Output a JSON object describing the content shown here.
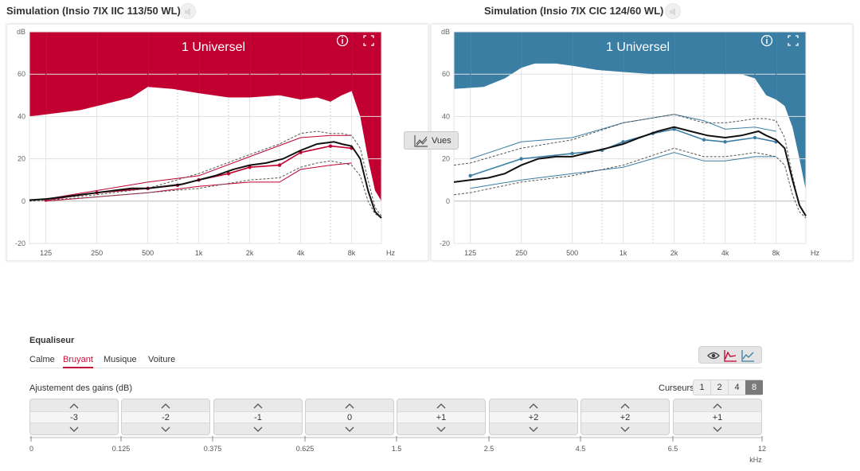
{
  "left_panel": {
    "title": "Simulation (Insio 7IX IIC 113/50 WL)",
    "overlay_label": "1 Universel",
    "info_icon": "info-icon",
    "expand_icon": "expand-icon",
    "color": "#c10031",
    "chart_data": {
      "type": "line",
      "ylabel": "dB",
      "xlabel": "Hz",
      "ylim": [
        -20,
        80
      ],
      "y_ticks": [
        "dB",
        "60",
        "40",
        "20",
        "0",
        "-20"
      ],
      "x_ticks": [
        "125",
        "250",
        "500",
        "1k",
        "2k",
        "4k",
        "8k"
      ],
      "grid": true,
      "series": [
        {
          "role": "target-black-solid",
          "x": [
            100,
            125,
            160,
            200,
            250,
            315,
            400,
            500,
            630,
            800,
            1000,
            1250,
            1600,
            2000,
            2500,
            3150,
            4000,
            5000,
            6300,
            7000,
            8000,
            9000,
            10000,
            11000,
            12000
          ],
          "values": [
            0.5,
            1,
            2,
            3,
            4,
            5,
            6,
            6,
            7,
            8,
            10,
            12,
            15,
            17,
            18,
            20,
            24,
            27,
            28,
            27,
            26,
            20,
            5,
            -5,
            -8
          ]
        },
        {
          "role": "measured-red-dots",
          "x": [
            125,
            250,
            500,
            750,
            1000,
            1500,
            2000,
            3000,
            4000,
            6000,
            8000
          ],
          "values": [
            0.5,
            4,
            6,
            7.5,
            10,
            13,
            16,
            17,
            23,
            26,
            25
          ]
        },
        {
          "role": "range-red-upper",
          "x": [
            125,
            250,
            500,
            1000,
            2000,
            4000,
            6000,
            8000
          ],
          "values": [
            1,
            5,
            9,
            12,
            21,
            30,
            31,
            31
          ]
        },
        {
          "role": "range-red-lower",
          "x": [
            125,
            250,
            500,
            1000,
            2000,
            3000,
            4000,
            6000,
            8000
          ],
          "values": [
            0,
            2,
            4,
            7,
            9,
            9,
            15,
            17,
            18
          ]
        },
        {
          "role": "dashed-upper",
          "x": [
            100,
            125,
            250,
            500,
            1000,
            2000,
            3000,
            4000,
            5000,
            6000,
            7000,
            8000,
            9000,
            10000,
            11000,
            12000
          ],
          "values": [
            0.5,
            1,
            3,
            6,
            13,
            22,
            27,
            32,
            33,
            32,
            32,
            31,
            25,
            10,
            -3,
            -7
          ]
        },
        {
          "role": "dashed-lower",
          "x": [
            100,
            125,
            250,
            500,
            1000,
            2000,
            3000,
            4000,
            5000,
            6000,
            7000,
            8000,
            9000,
            10000,
            11000,
            12000
          ],
          "values": [
            0,
            0.5,
            2,
            4,
            6,
            10,
            11,
            16,
            18,
            19,
            18,
            17,
            12,
            0,
            -6,
            -8
          ]
        },
        {
          "role": "ucl-fill-top",
          "x": [
            100,
            200,
            400,
            500,
            700,
            1000,
            1500,
            2000,
            3000,
            4000,
            5000,
            6000,
            7000,
            8000,
            9000,
            10000,
            11000,
            12000
          ],
          "values": [
            40,
            43,
            49,
            54,
            53,
            51,
            49,
            49,
            50,
            48,
            49,
            47,
            50,
            52,
            40,
            20,
            5,
            0
          ]
        }
      ]
    }
  },
  "right_panel": {
    "title": "Simulation (Insio 7IX CIC 124/60 WL)",
    "overlay_label": "1 Universel",
    "info_icon": "info-icon",
    "expand_icon": "expand-icon",
    "color": "#3a7ea4",
    "chart_data": {
      "type": "line",
      "ylabel": "dB",
      "xlabel": "Hz",
      "ylim": [
        -20,
        80
      ],
      "y_ticks": [
        "dB",
        "60",
        "40",
        "20",
        "0",
        "-20"
      ],
      "x_ticks": [
        "125",
        "250",
        "500",
        "1k",
        "2k",
        "4k",
        "8k"
      ],
      "grid": true,
      "series": [
        {
          "role": "target-black-solid",
          "x": [
            100,
            125,
            160,
            200,
            250,
            315,
            400,
            500,
            630,
            800,
            1000,
            1250,
            1600,
            2000,
            2500,
            3150,
            4000,
            5000,
            6300,
            7000,
            8000,
            9000,
            10000,
            11000,
            12000
          ],
          "values": [
            9,
            10,
            11,
            13,
            17,
            20,
            21,
            21,
            23,
            25,
            27,
            30,
            33,
            35,
            33,
            31,
            30,
            31,
            33,
            31,
            29,
            25,
            10,
            -2,
            -7
          ]
        },
        {
          "role": "measured-blue-dots",
          "x": [
            125,
            250,
            500,
            750,
            1000,
            1500,
            2000,
            3000,
            4000,
            6000,
            8000
          ],
          "values": [
            12,
            20,
            22.5,
            24,
            28,
            32,
            34,
            29,
            28,
            30,
            28
          ]
        },
        {
          "role": "range-blue-upper",
          "x": [
            125,
            250,
            500,
            1000,
            2000,
            3000,
            4000,
            6000,
            8000
          ],
          "values": [
            20,
            28,
            30,
            37,
            41,
            38,
            34,
            35,
            33
          ]
        },
        {
          "role": "range-blue-lower",
          "x": [
            125,
            250,
            500,
            1000,
            2000,
            3000,
            4000,
            6000,
            8000
          ],
          "values": [
            6,
            10,
            13,
            16,
            23,
            19,
            19,
            21,
            21
          ]
        },
        {
          "role": "dashed-upper",
          "x": [
            100,
            125,
            250,
            500,
            1000,
            2000,
            3000,
            4000,
            5000,
            6000,
            7000,
            8000,
            9000,
            10000,
            11000,
            12000
          ],
          "values": [
            17,
            18,
            25,
            29,
            37,
            41,
            37,
            37,
            38,
            39,
            39,
            38,
            30,
            12,
            -2,
            -7
          ]
        },
        {
          "role": "dashed-lower",
          "x": [
            100,
            125,
            250,
            500,
            1000,
            2000,
            3000,
            4000,
            5000,
            6000,
            7000,
            8000,
            9000,
            10000,
            11000,
            12000
          ],
          "values": [
            3,
            4,
            9,
            12,
            17,
            25,
            21,
            21,
            22,
            23,
            22,
            21,
            17,
            3,
            -5,
            -8
          ]
        },
        {
          "role": "ucl-fill-top",
          "x": [
            100,
            150,
            200,
            250,
            300,
            400,
            500,
            700,
            1000,
            1500,
            2000,
            3000,
            4000,
            5000,
            6000,
            7000,
            8000,
            9000,
            10000,
            11000,
            12000
          ],
          "values": [
            53,
            54,
            58,
            63,
            65,
            65,
            64,
            62,
            61,
            60,
            60,
            60,
            60,
            60,
            58,
            50,
            48,
            45,
            35,
            20,
            5
          ]
        }
      ]
    }
  },
  "vues_button": {
    "label": "Vues",
    "icon": "chart-view-icon"
  },
  "equalizer": {
    "title": "Equaliseur",
    "tabs": [
      "Calme",
      "Bruyant",
      "Musique",
      "Voiture"
    ],
    "active_tab": "Bruyant",
    "gain_label": "Ajustement des gains (dB)",
    "cursors_label": "Curseurs",
    "cursor_options": [
      "1",
      "2",
      "4",
      "8"
    ],
    "active_cursor": "8",
    "view_icons": [
      "eye-icon",
      "curve-red-icon",
      "curve-blue-icon"
    ],
    "gains": [
      "-3",
      "-2",
      "-1",
      "0",
      "+1",
      "+2",
      "+2",
      "+1"
    ],
    "freq_labels": [
      "0",
      "0.125",
      "0.375",
      "0.625",
      "1.5",
      "2.5",
      "4.5",
      "6.5",
      "12"
    ],
    "freq_unit": "kHz"
  }
}
